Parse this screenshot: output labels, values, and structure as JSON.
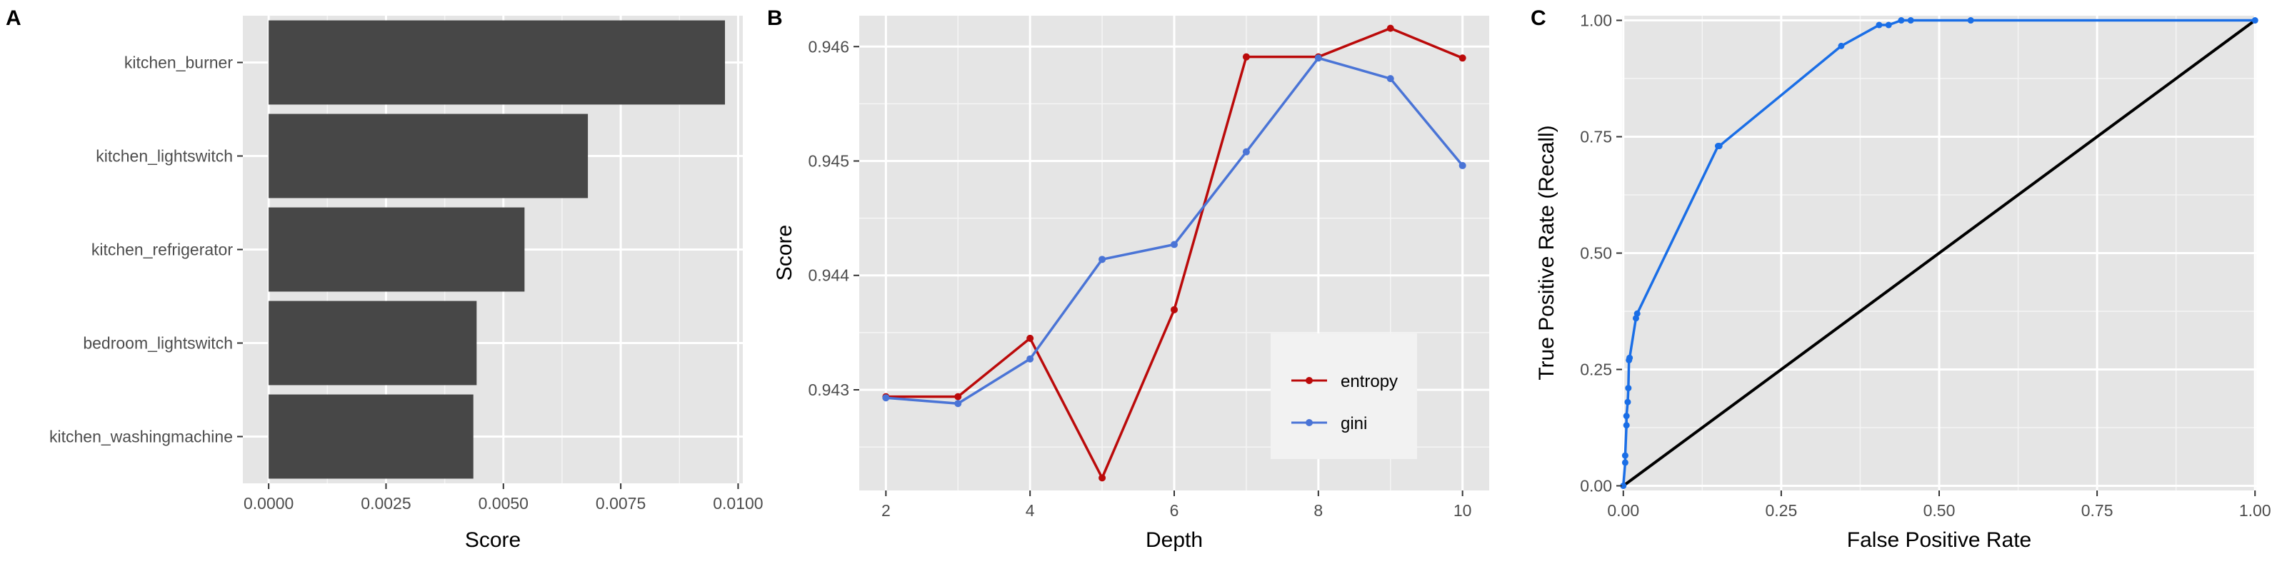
{
  "chart_data": [
    {
      "panel": "A",
      "type": "bar",
      "orientation": "horizontal",
      "categories": [
        "kitchen_burner",
        "kitchen_lightswitch",
        "kitchen_refrigerator",
        "bedroom_lightswitch",
        "kitchen_washingmachine"
      ],
      "values": [
        0.00972,
        0.0068,
        0.00545,
        0.00443,
        0.00436
      ],
      "xlabel": "Score",
      "ylabel": "",
      "xlim": [
        -0.00055,
        0.0101
      ],
      "xticks": [
        "0.0000",
        "0.0025",
        "0.0050",
        "0.0075",
        "0.0100"
      ],
      "bar_color": "#474747",
      "grid": true,
      "panel_background": "#e5e5e5"
    },
    {
      "panel": "B",
      "type": "line",
      "x": [
        2,
        3,
        4,
        5,
        6,
        7,
        8,
        9,
        10
      ],
      "series": [
        {
          "name": "entropy",
          "color": "#bb0a0a",
          "values": [
            0.94294,
            0.94294,
            0.94345,
            0.94223,
            0.9437,
            0.94591,
            0.94591,
            0.94616,
            0.9459
          ]
        },
        {
          "name": "gini",
          "color": "#4a74d6",
          "values": [
            0.94293,
            0.94288,
            0.94327,
            0.94414,
            0.94427,
            0.94508,
            0.9459,
            0.94572,
            0.94496
          ]
        }
      ],
      "xlabel": "Depth",
      "ylabel": "Score",
      "xlim": [
        1.63,
        10.37
      ],
      "ylim": [
        0.94212,
        0.94627
      ],
      "xticks": [
        "2",
        "4",
        "6",
        "8",
        "10"
      ],
      "yticks": [
        "0.943",
        "0.944",
        "0.945",
        "0.946"
      ],
      "legend_position": "bottom-right inside",
      "grid": true,
      "panel_background": "#e5e5e5"
    },
    {
      "panel": "C",
      "type": "line",
      "series": [
        {
          "name": "roc",
          "color": "#1a6ee6",
          "x": [
            0.0,
            0.003,
            0.003,
            0.005,
            0.005,
            0.007,
            0.008,
            0.009,
            0.01,
            0.02,
            0.022,
            0.15,
            0.152,
            0.345,
            0.405,
            0.42,
            0.44,
            0.455,
            0.55,
            1.0
          ],
          "y": [
            0.0,
            0.05,
            0.065,
            0.13,
            0.15,
            0.18,
            0.21,
            0.27,
            0.275,
            0.36,
            0.37,
            0.73,
            0.73,
            0.945,
            0.99,
            0.99,
            1.0,
            1.0,
            1.0,
            1.0
          ]
        },
        {
          "name": "diagonal",
          "color": "#000000",
          "x": [
            0.0,
            1.0
          ],
          "y": [
            0.0,
            1.0
          ]
        }
      ],
      "xlabel": "False Positive Rate",
      "ylabel": "True Positive Rate (Recall)",
      "xlim": [
        -0.002,
        1.002
      ],
      "ylim": [
        -0.01,
        1.01
      ],
      "xticks": [
        "0.00",
        "0.25",
        "0.50",
        "0.75",
        "1.00"
      ],
      "yticks": [
        "0.00",
        "0.25",
        "0.50",
        "0.75",
        "1.00"
      ],
      "grid": true,
      "panel_background": "#e5e5e5"
    }
  ]
}
